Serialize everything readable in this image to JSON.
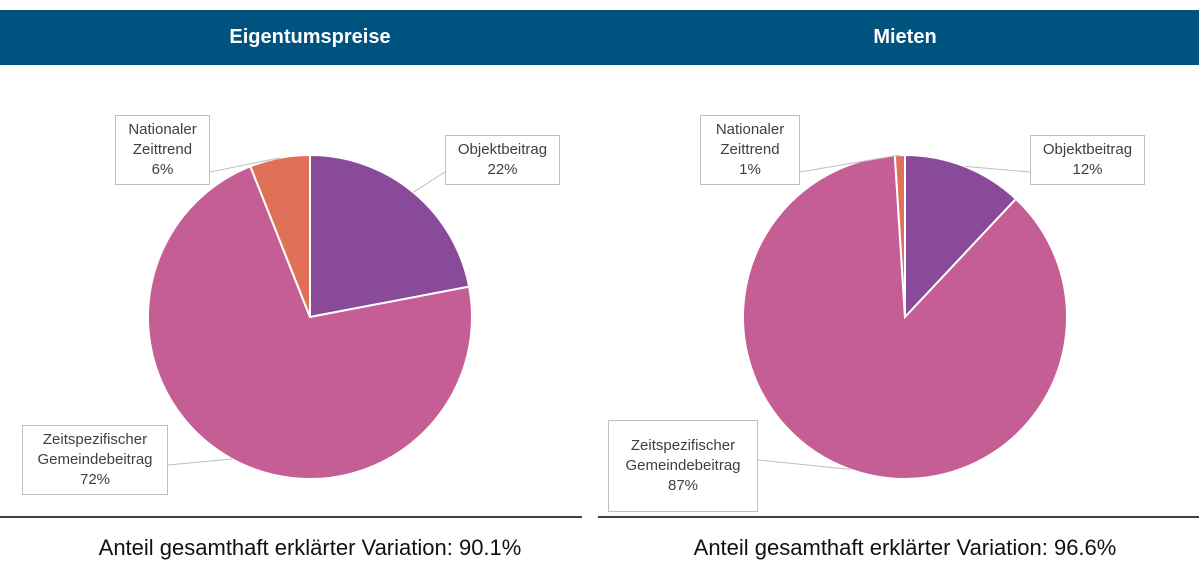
{
  "chart_data": [
    {
      "type": "pie",
      "title": "Eigentumspreise",
      "categories": [
        "Objektbeitrag",
        "Zeitspezifischer Gemeindebeitrag",
        "Nationaler Zeittrend"
      ],
      "values": [
        22,
        72,
        6
      ],
      "value_labels": [
        "22%",
        "72%",
        "6%"
      ],
      "colors": [
        "#8a4a9a",
        "#c45e94",
        "#e07058"
      ],
      "note": "Anteil gesamthaft erklärter Variation: 90.1%"
    },
    {
      "type": "pie",
      "title": "Mieten",
      "categories": [
        "Objektbeitrag",
        "Zeitspezifischer Gemeindebeitrag",
        "Nationaler Zeittrend"
      ],
      "values": [
        12,
        87,
        1
      ],
      "value_labels": [
        "12%",
        "87%",
        "1%"
      ],
      "colors": [
        "#8a4a9a",
        "#c45e94",
        "#e07058"
      ],
      "note": "Anteil gesamthaft erklärter Variation: 96.6%"
    }
  ]
}
